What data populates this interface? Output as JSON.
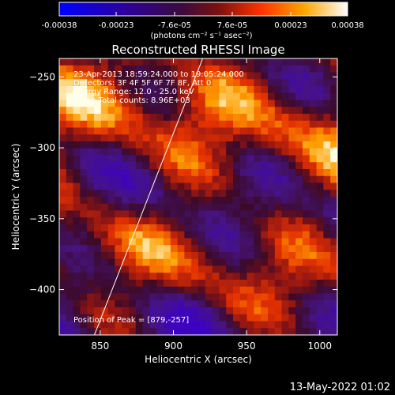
{
  "colorbar": {
    "ticks": [
      "-0.00038",
      "-0.00023",
      "-7.6e-05",
      "7.6e-05",
      "0.00023",
      "0.00038"
    ],
    "tick_values": [
      -0.00038,
      -0.00023,
      -7.6e-05,
      7.6e-05,
      0.00023,
      0.00038
    ],
    "range": [
      -0.00038,
      0.00038
    ],
    "units_label": "(photons cm⁻² s⁻¹ asec⁻²)",
    "colormap": [
      "#0000ff",
      "#4b0082",
      "#8b1a1a",
      "#ff3300",
      "#ff9900",
      "#ffffff"
    ]
  },
  "chart_data": {
    "type": "heatmap",
    "title": "Reconstructed RHESSI Image",
    "xlabel": "Heliocentric X (arcsec)",
    "ylabel": "Heliocentric Y (arcsec)",
    "xlim": [
      822,
      1012
    ],
    "ylim": [
      -432,
      -237
    ],
    "xticks": [
      850,
      900,
      950,
      1000
    ],
    "yticks": [
      -250,
      -300,
      -350,
      -400
    ],
    "limb_line": [
      {
        "x": 846,
        "y": -432
      },
      {
        "x": 920,
        "y": -237
      }
    ],
    "annotations": [
      "23-Apr-2013 18:59:24.000 to 19:05:24.000",
      "Detectors: 3F 4F 5F 6F 7F 8F, Att 0",
      "Energy Range: 12.0 - 25.0 keV",
      "Clean    Total counts: 8.96E+03"
    ],
    "peak_label": "Position of Peak = [879,-257]"
  },
  "footer": {
    "timestamp": "13-May-2022 01:02"
  }
}
